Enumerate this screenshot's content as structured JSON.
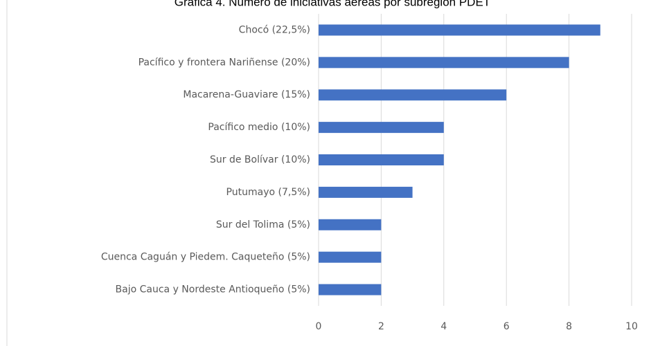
{
  "chart_data": {
    "type": "bar",
    "orientation": "horizontal",
    "title": "Gráfica 4. Número de iniciativas aéreas por subregión PDET",
    "categories": [
      "Chocó (22,5%)",
      "Pacífico y frontera Nariñense (20%)",
      "Macarena-Guaviare (15%)",
      "Pacífico medio (10%)",
      "Sur de Bolívar (10%)",
      "Putumayo (7,5%)",
      "Sur del Tolima (5%)",
      "Cuenca Caguán y Piedem. Caqueteño (5%)",
      "Bajo Cauca y Nordeste Antioqueño (5%)"
    ],
    "values": [
      9,
      8,
      6,
      4,
      4,
      3,
      2,
      2,
      2
    ],
    "color": "#4472c4",
    "xlim": [
      0,
      10
    ],
    "xticks": [
      0,
      2,
      4,
      6,
      8,
      10
    ],
    "grid": true
  }
}
